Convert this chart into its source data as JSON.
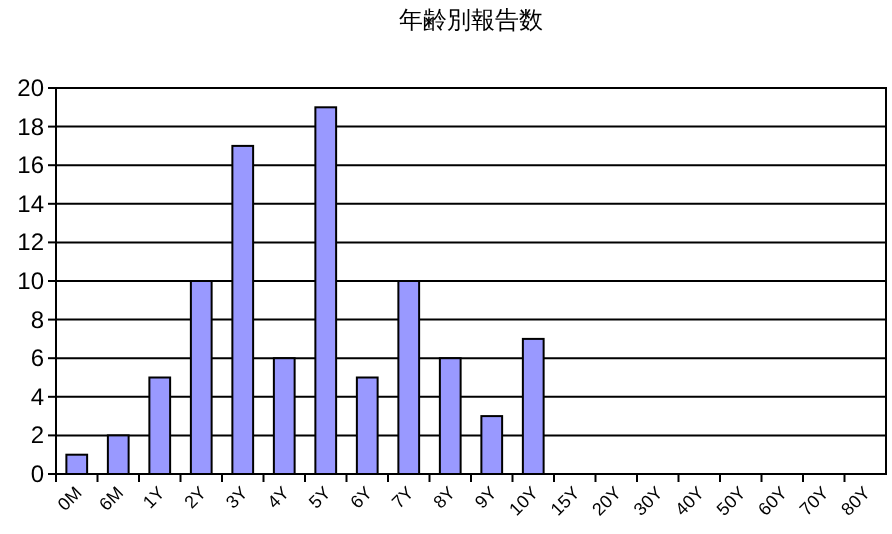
{
  "chart_data": {
    "type": "bar",
    "title": "年齢別報告数",
    "categories": [
      "0M",
      "6M",
      "1Y",
      "2Y",
      "3Y",
      "4Y",
      "5Y",
      "6Y",
      "7Y",
      "8Y",
      "9Y",
      "10Y",
      "15Y",
      "20Y",
      "30Y",
      "40Y",
      "50Y",
      "60Y",
      "70Y",
      "80Y"
    ],
    "values": [
      1,
      2,
      5,
      10,
      17,
      6,
      19,
      5,
      10,
      6,
      3,
      7,
      0,
      0,
      0,
      0,
      0,
      0,
      0,
      0
    ],
    "color": "#9999ff",
    "ylim": [
      0,
      20
    ],
    "yticks": [
      0,
      2,
      4,
      6,
      8,
      10,
      12,
      14,
      16,
      18,
      20
    ],
    "grid": "y"
  }
}
